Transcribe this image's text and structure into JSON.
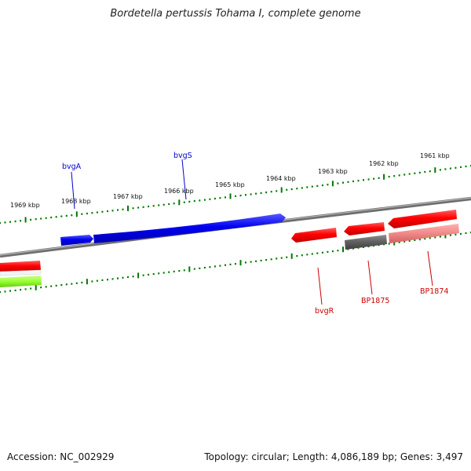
{
  "title": "Bordetella pertussis Tohama I, complete genome",
  "scale": {
    "unit": "kbp",
    "ticks": [
      "1969 kbp",
      "1968 kbp",
      "1967 kbp",
      "1966 kbp",
      "1965 kbp",
      "1964 kbp",
      "1963 kbp",
      "1962 kbp",
      "1961 kbp"
    ]
  },
  "genes": {
    "forward_strand": [
      {
        "name": "bvgA",
        "label": "bvgA",
        "color": "#0000ff"
      },
      {
        "name": "bvgS",
        "label": "bvgS",
        "color": "#0000ff"
      }
    ],
    "reverse_strand": [
      {
        "name": "bvgR",
        "label": "bvgR",
        "color": "#ff0000"
      },
      {
        "name": "BP1875",
        "label": "BP1875",
        "color": "#ff0000"
      },
      {
        "name": "BP1874",
        "label": "BP1874",
        "color": "#ff0000"
      }
    ],
    "unlabeled_colors": {
      "grey_feature": "#6a6a6a",
      "pink_feature": "#f08888",
      "green_feature": "#99ff33",
      "red_feature": "#ff0000"
    }
  },
  "colors": {
    "backbone": "#777777",
    "tick": "#007700",
    "forward": "#0000ff",
    "reverse": "#ff0000",
    "labels_forward": "#0000cc",
    "labels_reverse": "#cc0000"
  },
  "footer": {
    "accession": "Accession: NC_002929",
    "summary": "Topology: circular; Length: 4,086,189 bp; Genes: 3,497"
  }
}
